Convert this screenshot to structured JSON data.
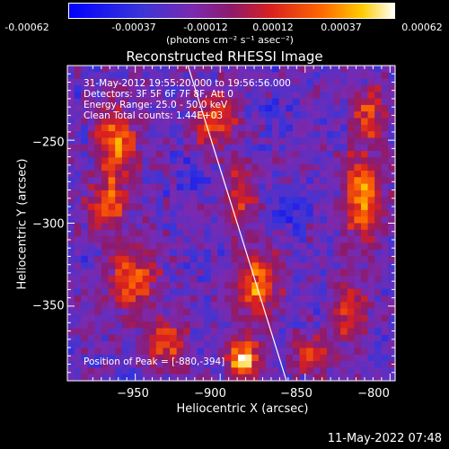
{
  "colorbar": {
    "tick_labels": [
      "-0.00062",
      "-0.00037",
      "-0.00012",
      "0.00012",
      "0.00037",
      "0.00062"
    ],
    "unit_label": "(photons cm⁻² s⁻¹ asec⁻²)",
    "colors": [
      "#0000ff",
      "#4030d0",
      "#7a2ab0",
      "#a01a70",
      "#d02020",
      "#ff6600",
      "#ffcc00",
      "#ffffff"
    ]
  },
  "chart_data": {
    "type": "heatmap",
    "title": "Reconstructed RHESSI Image",
    "xlabel": "Heliocentric X (arcsec)",
    "ylabel": "Heliocentric Y (arcsec)",
    "xlim": [
      -990,
      -797
    ],
    "ylim": [
      -395,
      -205
    ],
    "x_ticks": [
      -950,
      -900,
      -850,
      -800
    ],
    "y_ticks": [
      -250,
      -300,
      -350
    ],
    "x_tick_labels": [
      "−950",
      "−900",
      "−850",
      "−800"
    ],
    "y_tick_labels": [
      "−250",
      "−300",
      "−350"
    ],
    "color_range": [
      -0.00062,
      0.00062
    ],
    "limb_line": [
      [
        -919,
        -205
      ],
      [
        -861,
        -395
      ]
    ],
    "annotations": [
      "31-May-2012 19:55:20.000 to 19:56:56.000",
      "Detectors: 3F 5F 6F 7F 8F, Att 0",
      "Energy Range: 25.0 - 50.0 keV",
      "Clean     Total counts: 1.44E+03"
    ],
    "peak_label": "Position of Peak = [-880,-394]",
    "peak": [
      -880,
      -394
    ]
  },
  "footer": {
    "timestamp": "11-May-2022 07:48"
  }
}
